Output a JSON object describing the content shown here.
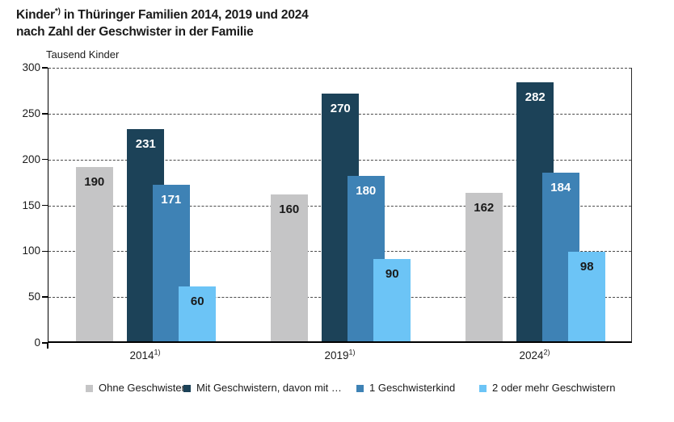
{
  "title": {
    "line1_pre": "Kinder",
    "line1_sup": "*)",
    "line1_rest": " in Thüringer Familien 2014, 2019 und 2024",
    "line2": "nach Zahl der Geschwister in der Familie"
  },
  "chart_data": {
    "type": "bar",
    "unit_label": "Tausend Kinder",
    "categories": [
      {
        "label": "2014",
        "sup": "1)"
      },
      {
        "label": "2019",
        "sup": "1)"
      },
      {
        "label": "2024",
        "sup": "2)"
      }
    ],
    "series": [
      {
        "name": "Ohne Geschwister",
        "color": "#c5c5c6",
        "label_color": "#1a1a1a",
        "values": [
          190,
          160,
          162
        ]
      },
      {
        "name": "Mit Geschwistern, davon mit …",
        "color": "#1c4258",
        "label_color": "#ffffff",
        "values": [
          231,
          270,
          282
        ]
      },
      {
        "name": "1 Geschwisterkind",
        "color": "#3e82b5",
        "label_color": "#ffffff",
        "values": [
          171,
          180,
          184
        ]
      },
      {
        "name": "2 oder mehr Geschwistern",
        "color": "#6cc4f6",
        "label_color": "#1a1a1a",
        "values": [
          60,
          90,
          98
        ]
      }
    ],
    "ylim": [
      0,
      300
    ],
    "ytick_step": 50,
    "yticks": [
      0,
      50,
      100,
      150,
      200,
      250,
      300
    ],
    "grid": "dashed horizontal",
    "legend_position": "bottom",
    "axis_color": "#000000",
    "gridline_color": "#4a4a4a"
  }
}
